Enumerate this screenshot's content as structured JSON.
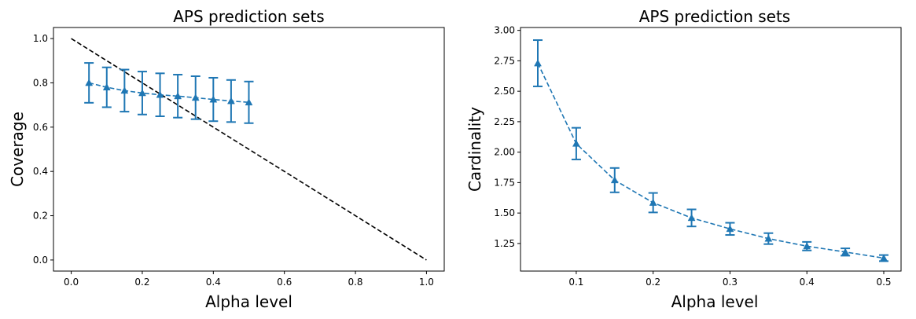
{
  "colors": {
    "series": "#1f77b4",
    "reference": "#000000"
  },
  "chart_data": [
    {
      "type": "line",
      "title": "APS prediction sets",
      "xlabel": "Alpha level",
      "ylabel": "Coverage",
      "xlim": [
        -0.05,
        1.05
      ],
      "ylim": [
        -0.05,
        1.05
      ],
      "xticks": [
        0.0,
        0.2,
        0.4,
        0.6,
        0.8,
        1.0
      ],
      "xtick_labels": [
        "0.0",
        "0.2",
        "0.4",
        "0.6",
        "0.8",
        "1.0"
      ],
      "yticks": [
        0.0,
        0.2,
        0.4,
        0.6,
        0.8,
        1.0
      ],
      "ytick_labels": [
        "0.0",
        "0.2",
        "0.4",
        "0.6",
        "0.8",
        "1.0"
      ],
      "grid": false,
      "series": [
        {
          "x": [
            0.05,
            0.1,
            0.15,
            0.2,
            0.25,
            0.3,
            0.35,
            0.4,
            0.45,
            0.5
          ],
          "y": [
            0.8,
            0.78,
            0.765,
            0.754,
            0.746,
            0.74,
            0.733,
            0.725,
            0.718,
            0.712
          ],
          "yerr": [
            0.09,
            0.09,
            0.095,
            0.097,
            0.097,
            0.097,
            0.097,
            0.098,
            0.095,
            0.094
          ],
          "style": "dashed",
          "marker": "triangle"
        }
      ],
      "reference_line": {
        "x": [
          0.0,
          1.0
        ],
        "y": [
          1.0,
          0.0
        ],
        "style": "dashed"
      }
    },
    {
      "type": "line",
      "title": "APS prediction sets",
      "xlabel": "Alpha level",
      "ylabel": "Cardinality",
      "xlim": [
        0.0275,
        0.5225
      ],
      "ylim": [
        1.0235,
        3.0235
      ],
      "xticks": [
        0.1,
        0.2,
        0.3,
        0.4,
        0.5
      ],
      "xtick_labels": [
        "0.1",
        "0.2",
        "0.3",
        "0.4",
        "0.5"
      ],
      "yticks": [
        1.25,
        1.5,
        1.75,
        2.0,
        2.25,
        2.5,
        2.75,
        3.0
      ],
      "ytick_labels": [
        "1.25",
        "1.50",
        "1.75",
        "2.00",
        "2.25",
        "2.50",
        "2.75",
        "3.00"
      ],
      "grid": false,
      "series": [
        {
          "x": [
            0.05,
            0.1,
            0.15,
            0.2,
            0.25,
            0.3,
            0.35,
            0.4,
            0.45,
            0.5
          ],
          "y": [
            2.73,
            2.07,
            1.77,
            1.585,
            1.46,
            1.37,
            1.29,
            1.228,
            1.18,
            1.13
          ],
          "yerr": [
            0.19,
            0.13,
            0.1,
            0.08,
            0.07,
            0.05,
            0.045,
            0.035,
            0.03,
            0.025
          ],
          "style": "dashed",
          "marker": "triangle"
        }
      ]
    }
  ]
}
